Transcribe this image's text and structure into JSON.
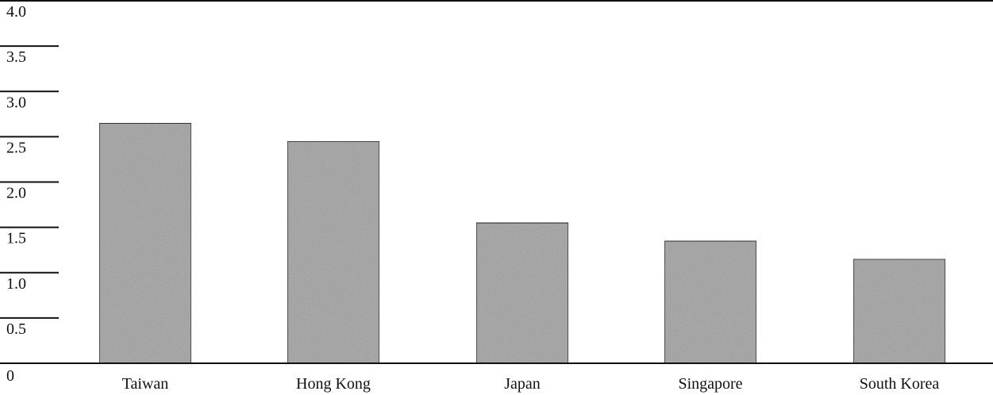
{
  "chart_data": {
    "type": "bar",
    "title": "",
    "xlabel": "",
    "ylabel": "",
    "categories": [
      "Taiwan",
      "Hong Kong",
      "Japan",
      "Singapore",
      "South Korea"
    ],
    "values": [
      2.65,
      2.45,
      1.55,
      1.35,
      1.15
    ],
    "ylim": [
      0,
      4.0
    ],
    "y_ticks": [
      0,
      0.5,
      1.0,
      1.5,
      2.0,
      2.5,
      3.0,
      3.5,
      4.0
    ],
    "y_tick_labels": [
      "0",
      "0.5",
      "1.0",
      "1.5",
      "2.0",
      "2.5",
      "3.0",
      "3.5",
      "4.0"
    ],
    "grid": false,
    "legend": "none",
    "bar_color": "#a9a9a9",
    "bar_edge_color": "#333333",
    "text_color": "#111111"
  }
}
